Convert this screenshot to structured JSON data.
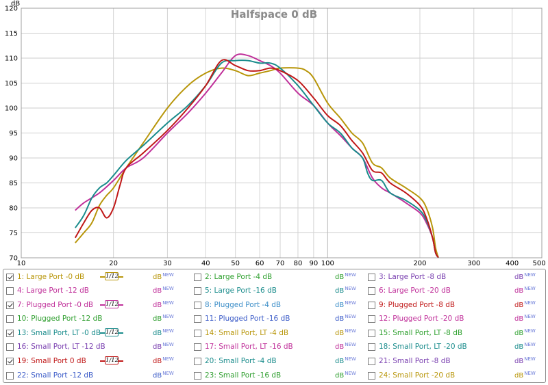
{
  "chart_data": {
    "type": "line",
    "title": "Halfspace 0 dB",
    "ylabel": "dB",
    "xlabel_unit": "Hz",
    "x_scale": "log",
    "xlim": [
      10,
      500
    ],
    "ylim": [
      70,
      120
    ],
    "y_ticks": [
      70,
      75,
      80,
      85,
      90,
      95,
      100,
      105,
      110,
      115,
      120
    ],
    "x_tick_labels": [
      "10",
      "20",
      "30",
      "40",
      "50",
      "60",
      "70",
      "80",
      "90",
      "100",
      "200",
      "300",
      "400",
      "500 Hz"
    ],
    "x_tick_values": [
      10,
      20,
      30,
      40,
      50,
      60,
      70,
      80,
      90,
      100,
      200,
      300,
      400,
      500
    ],
    "grid": true,
    "series": [
      {
        "name": "1: Large Port -0 dB",
        "color": "#b8960a",
        "points": [
          [
            15,
            73
          ],
          [
            16,
            75
          ],
          [
            17,
            77
          ],
          [
            18,
            80.5
          ],
          [
            19,
            82.5
          ],
          [
            20,
            84
          ],
          [
            22,
            88
          ],
          [
            25,
            93
          ],
          [
            30,
            100
          ],
          [
            35,
            104.5
          ],
          [
            40,
            107
          ],
          [
            45,
            108
          ],
          [
            50,
            107.5
          ],
          [
            55,
            106.5
          ],
          [
            60,
            107
          ],
          [
            65,
            107.5
          ],
          [
            70,
            108
          ],
          [
            80,
            108
          ],
          [
            85,
            107.5
          ],
          [
            90,
            106
          ],
          [
            100,
            101
          ],
          [
            110,
            98
          ],
          [
            120,
            95
          ],
          [
            130,
            93
          ],
          [
            140,
            89
          ],
          [
            150,
            88
          ],
          [
            160,
            86
          ],
          [
            180,
            84
          ],
          [
            200,
            82
          ],
          [
            210,
            80
          ],
          [
            220,
            76
          ],
          [
            225,
            72
          ],
          [
            230,
            70
          ]
        ]
      },
      {
        "name": "7: Plugged Port -0 dB",
        "color": "#c0309a",
        "points": [
          [
            15,
            79.5
          ],
          [
            16,
            81
          ],
          [
            18,
            83
          ],
          [
            20,
            85.5
          ],
          [
            22,
            88
          ],
          [
            25,
            90
          ],
          [
            30,
            95
          ],
          [
            35,
            99
          ],
          [
            40,
            103
          ],
          [
            45,
            107
          ],
          [
            50,
            110.5
          ],
          [
            55,
            110.5
          ],
          [
            60,
            109.5
          ],
          [
            65,
            108.5
          ],
          [
            70,
            107
          ],
          [
            80,
            103
          ],
          [
            90,
            100.5
          ],
          [
            100,
            97
          ],
          [
            110,
            94.5
          ],
          [
            120,
            92
          ],
          [
            130,
            90
          ],
          [
            140,
            86
          ],
          [
            150,
            84
          ],
          [
            160,
            83
          ],
          [
            170,
            82
          ],
          [
            180,
            81
          ],
          [
            200,
            79
          ],
          [
            210,
            77
          ],
          [
            220,
            74
          ],
          [
            225,
            71
          ],
          [
            230,
            70
          ]
        ]
      },
      {
        "name": "13: Small Port, LT -0 dB",
        "color": "#1a8c8c",
        "points": [
          [
            15,
            76
          ],
          [
            16,
            78.5
          ],
          [
            17,
            82
          ],
          [
            18,
            84
          ],
          [
            19,
            85
          ],
          [
            20,
            86.5
          ],
          [
            22,
            89.5
          ],
          [
            25,
            92.5
          ],
          [
            30,
            97
          ],
          [
            35,
            100.5
          ],
          [
            40,
            104.5
          ],
          [
            45,
            109
          ],
          [
            50,
            109.5
          ],
          [
            55,
            109.5
          ],
          [
            60,
            109
          ],
          [
            65,
            109
          ],
          [
            70,
            108
          ],
          [
            80,
            104.5
          ],
          [
            90,
            100.5
          ],
          [
            100,
            97
          ],
          [
            110,
            95
          ],
          [
            120,
            92
          ],
          [
            130,
            90
          ],
          [
            135,
            87
          ],
          [
            140,
            85.5
          ],
          [
            150,
            85.5
          ],
          [
            160,
            83
          ],
          [
            180,
            81.5
          ],
          [
            200,
            79.5
          ],
          [
            210,
            77.5
          ],
          [
            220,
            74
          ],
          [
            225,
            71
          ],
          [
            230,
            70
          ]
        ]
      },
      {
        "name": "19: Small Port 0 dB",
        "color": "#c01818",
        "points": [
          [
            15,
            74
          ],
          [
            16,
            77
          ],
          [
            17,
            79.5
          ],
          [
            18,
            80
          ],
          [
            19,
            78
          ],
          [
            20,
            80
          ],
          [
            21,
            84.5
          ],
          [
            22,
            88
          ],
          [
            25,
            91
          ],
          [
            30,
            95.5
          ],
          [
            35,
            100
          ],
          [
            40,
            104.5
          ],
          [
            45,
            109.5
          ],
          [
            50,
            108.5
          ],
          [
            55,
            107.5
          ],
          [
            60,
            107.5
          ],
          [
            65,
            108
          ],
          [
            70,
            107.5
          ],
          [
            80,
            105.5
          ],
          [
            90,
            102
          ],
          [
            100,
            98.5
          ],
          [
            110,
            96.5
          ],
          [
            120,
            93.5
          ],
          [
            130,
            91
          ],
          [
            140,
            87.5
          ],
          [
            150,
            87
          ],
          [
            160,
            85
          ],
          [
            180,
            83
          ],
          [
            200,
            80.5
          ],
          [
            210,
            78
          ],
          [
            220,
            74
          ],
          [
            225,
            71
          ],
          [
            230,
            70
          ]
        ]
      }
    ]
  },
  "legend": {
    "unit": "dB",
    "unit_badge": "NEW",
    "smoothing_label": "1/12",
    "entries": [
      {
        "label": "1: Large Port -0 dB",
        "color": "#b8960a",
        "checked": true,
        "smoothing": true
      },
      {
        "label": "2: Large Port -4 dB",
        "color": "#2ea02e",
        "checked": false
      },
      {
        "label": "3: Large Port -8 dB",
        "color": "#7a40b0",
        "checked": false
      },
      {
        "label": "4: Large Port -12 dB",
        "color": "#c0309a",
        "checked": false
      },
      {
        "label": "5: Large Port -16 dB",
        "color": "#1a8c8c",
        "checked": false
      },
      {
        "label": "6: Large Port -20 dB",
        "color": "#c0309a",
        "checked": false
      },
      {
        "label": "7: Plugged Port -0 dB",
        "color": "#c0309a",
        "checked": true,
        "smoothing": true
      },
      {
        "label": "8: Plugged Port -4 dB",
        "color": "#3c8ec8",
        "checked": false
      },
      {
        "label": "9: Plugged Port -8 dB",
        "color": "#c01818",
        "checked": false
      },
      {
        "label": "10: Plugged Port -12 dB",
        "color": "#2e9e2e",
        "checked": false
      },
      {
        "label": "11: Plugged Port -16 dB",
        "color": "#3c5cc8",
        "checked": false
      },
      {
        "label": "12: Plugged Port -20 dB",
        "color": "#c0309a",
        "checked": false
      },
      {
        "label": "13: Small Port, LT -0 dB",
        "color": "#1a8c8c",
        "checked": true,
        "smoothing": true
      },
      {
        "label": "14: Small Port, LT -4 dB",
        "color": "#b8960a",
        "checked": false
      },
      {
        "label": "15: Small Port, LT -8 dB",
        "color": "#2ea02e",
        "checked": false
      },
      {
        "label": "16: Small Port, LT -12 dB",
        "color": "#7a40b0",
        "checked": false
      },
      {
        "label": "17: Small Port, LT -16 dB",
        "color": "#c0309a",
        "checked": false
      },
      {
        "label": "18: Small Port, LT -20 dB",
        "color": "#1a8c8c",
        "checked": false
      },
      {
        "label": "19: Small Port 0 dB",
        "color": "#c01818",
        "checked": true,
        "smoothing": true
      },
      {
        "label": "20: Small Port -4 dB",
        "color": "#1a8c8c",
        "checked": false
      },
      {
        "label": "21: Small Port -8 dB",
        "color": "#7a40b0",
        "checked": false
      },
      {
        "label": "22: Small Port -12 dB",
        "color": "#3c5cc8",
        "checked": false
      },
      {
        "label": "23: Small Port -16 dB",
        "color": "#2e9e2e",
        "checked": false
      },
      {
        "label": "24: Small Port -20 dB",
        "color": "#b8960a",
        "checked": false
      }
    ]
  }
}
